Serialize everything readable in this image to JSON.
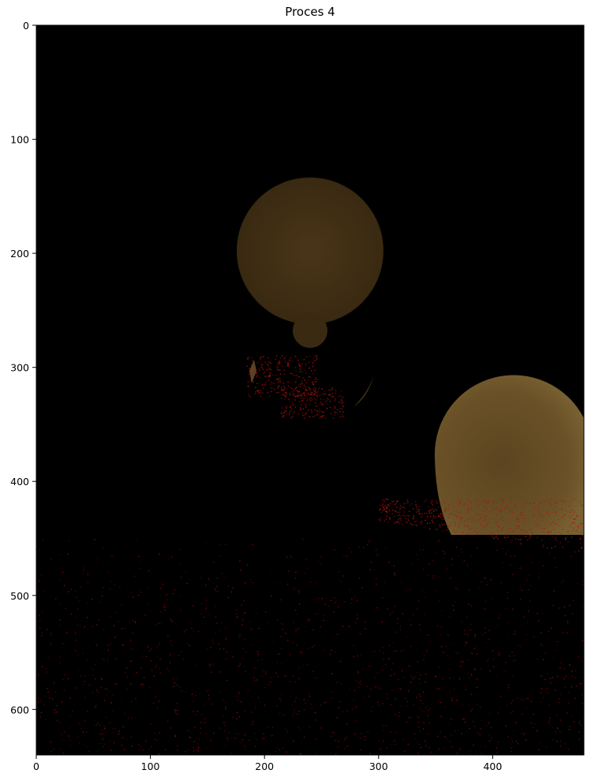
{
  "figure": {
    "title": "Proces 4"
  },
  "axes": {
    "x_ticks": [
      "0",
      "100",
      "200",
      "300",
      "400"
    ],
    "y_ticks": [
      "0",
      "100",
      "200",
      "300",
      "400",
      "500",
      "600"
    ],
    "x_range": [
      0,
      480
    ],
    "y_range": [
      0,
      640
    ],
    "y_inverted": true
  },
  "image": {
    "background": "#000000",
    "sphere_color": "#6a4e22",
    "noise_color": "#8a0b0b"
  }
}
